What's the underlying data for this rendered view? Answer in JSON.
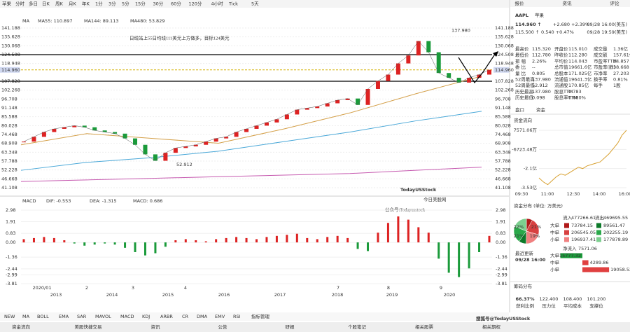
{
  "toolbar": {
    "items": [
      "苹果",
      "分时",
      "多日",
      "日K",
      "周K",
      "月K",
      "年K",
      "1分",
      "3分",
      "5分",
      "15分",
      "30分",
      "60分",
      "120分",
      "4小时",
      "Tick",
      "5天"
    ]
  },
  "price_chart": {
    "ma_legend": [
      "MA",
      "MA55: 110.897",
      "MA144: 89.113",
      "MA480: 53.829"
    ],
    "annotation": "日线站上55日均线111美元上方做多，目标124美元",
    "ylim": [
      41.108,
      141.188
    ],
    "yticks": [
      141.188,
      135.628,
      130.068,
      124.508,
      118.948,
      107.828,
      102.268,
      96.708,
      91.148,
      85.588,
      80.028,
      74.468,
      68.908,
      63.348,
      57.788,
      52.228,
      46.668,
      41.108
    ],
    "current_price": {
      "value": 114.96,
      "label": "114.960"
    },
    "levels": [
      124.508,
      107.828
    ],
    "high": {
      "value": 137.98,
      "label": "137.980"
    },
    "low": {
      "value": 52.912,
      "label": "52.912"
    },
    "close": [
      70,
      73,
      76,
      78,
      79,
      80,
      79,
      77,
      76,
      75,
      72,
      68,
      62,
      58,
      63,
      66,
      67,
      68,
      70,
      72,
      73,
      76,
      78,
      80,
      82,
      84,
      87,
      90,
      91,
      92,
      94,
      96,
      97,
      93,
      103,
      108,
      112,
      119,
      124,
      133,
      126,
      113,
      110,
      107,
      110,
      112,
      115
    ],
    "ma55": [
      68,
      75,
      72,
      69,
      78,
      88,
      100,
      111
    ],
    "ma144": [
      52,
      57,
      60,
      64,
      70,
      76,
      83,
      89
    ],
    "ma480": [
      45,
      46,
      47,
      48,
      49,
      50,
      52,
      54
    ]
  },
  "macd_chart": {
    "legend": [
      "MACD",
      "DIF: -0.553",
      "DEA: -1.315",
      "MACD: 0.686"
    ],
    "ylim": [
      -3.81,
      2.98
    ],
    "yticks": [
      {
        "value": 2.98,
        "label": "2.98"
      },
      {
        "value": 1.91,
        "label": "1.91"
      },
      {
        "value": 0.83,
        "label": "0.83"
      },
      {
        "value": 0,
        "label": "0.00"
      },
      {
        "value": -1.36,
        "label": "-1.36"
      },
      {
        "value": -2.44,
        "label": "-2.44"
      },
      {
        "value": -2.99,
        "label": "-2.99"
      },
      {
        "value": -3.81,
        "label": "-3.81"
      }
    ],
    "histogram": [
      0.3,
      0.4,
      0.5,
      0.4,
      0.2,
      -0.1,
      -0.3,
      -0.2,
      -0.1,
      -0.2,
      -0.5,
      -0.9,
      -1.2,
      -1.0,
      -0.4,
      0.2,
      0.3,
      0.2,
      0.1,
      0.3,
      0.4,
      0.5,
      0.4,
      0.3,
      0.5,
      0.6,
      0.7,
      0.8,
      0.4,
      0.3,
      0.5,
      0.6,
      0.4,
      -0.6,
      -0.8,
      0.9,
      1.8,
      2.4,
      2.1,
      1.4,
      0.9,
      -1.5,
      -2.8,
      -3.2,
      -2.4,
      -0.9,
      0.6
    ]
  },
  "x_axis": {
    "months": [
      "2020/01",
      "2",
      "3",
      "4",
      "7",
      "8",
      "9"
    ],
    "years": [
      "2013",
      "2014",
      "2015",
      "2016",
      "2017",
      "2018",
      "2019",
      "2020"
    ]
  },
  "watermarks": {
    "logo": "TodayUSStock",
    "logo_cn": "今日美股网",
    "wechat": "公众号:Todayusstock",
    "sohu": "搜狐号@TodayUSStock"
  },
  "indicators": [
    "NEW",
    "MA",
    "BOLL",
    "EMA",
    "SAR",
    "MAVOL",
    "MACD",
    "KDJ",
    "ARBR",
    "CR",
    "DMA",
    "EMV",
    "RSI",
    "指标管理"
  ],
  "bottom_tabs": [
    "资金流向",
    "美股快捷交易",
    "资讯",
    "公告",
    "研报",
    "个股笔记",
    "相关股票",
    "相关期权"
  ],
  "quote": {
    "tabs": [
      "报价",
      "资讯",
      "评论"
    ],
    "symbol": "AAPL",
    "name": "苹果",
    "price": "114.960 ↑",
    "change": "+2.680 +2.39%",
    "time": "09/28 16:00(美东)",
    "after_price": "115.500 ↑",
    "after_change": "0.540 +0.47%",
    "after_time": "09/28 19:59(美东)",
    "rows": [
      [
        "最高价",
        "115.320",
        "开盘价",
        "115.010",
        "成交量",
        "1.36亿"
      ],
      [
        "最低价",
        "112.780",
        "昨收价",
        "112.280",
        "成交额",
        "157.61亿"
      ],
      [
        "振 幅",
        "2.26%",
        "平均价",
        "114.043",
        "市盈率TTM",
        "34.857"
      ],
      [
        "委 比",
        "--",
        "总市值",
        "19661.6亿",
        "市盈率(静)",
        "38.668"
      ],
      [
        "量 比",
        "0.805",
        "总股本",
        "171.025亿",
        "市净率",
        "27.203"
      ],
      [
        "52周最高",
        "137.980",
        "流通值",
        "19641.3亿",
        "换手率",
        "0.81%"
      ],
      [
        "52周最低",
        "52.912",
        "流通股",
        "170.85亿",
        "每手",
        "1股"
      ],
      [
        "历史最高",
        "137.980",
        "股息TTM",
        "0.783"
      ],
      [
        "历史最低",
        "0.098",
        "股息率TTM",
        "0.680%"
      ]
    ],
    "panel_tabs": [
      "盘口",
      "资金"
    ]
  },
  "fund_flow": {
    "title": "资金流向",
    "ylim": [
      -35300,
      7571.06
    ],
    "yticks": [
      {
        "value": 7571.06,
        "label": "7571.06万"
      },
      {
        "value": -6723.48,
        "label": "-6723.48万"
      },
      {
        "value": -21000,
        "label": "-2.1亿"
      },
      {
        "value": -35300,
        "label": "-3.53亿"
      }
    ],
    "times": [
      "09:30",
      "11:00",
      "12:30",
      "14:00",
      "16:00"
    ],
    "values": [
      -28000,
      -31000,
      -33000,
      -30000,
      -27000,
      -25000,
      -26000,
      -24000,
      -22000,
      -20000,
      -21000,
      -19000,
      -18000,
      -17000,
      -16000,
      -13000,
      -10000,
      -6000,
      -2000,
      4000,
      7571.06
    ]
  },
  "fund_distribution": {
    "title": "资金分布 (单位: 万美元)",
    "inflow_label": "流入",
    "inflow": 477266.61,
    "outflow_label": "流出",
    "outflow": 469695.55,
    "rows": [
      {
        "name": "大单",
        "in": 73784.15,
        "out": 89561.47
      },
      {
        "name": "中单",
        "in": 206545.05,
        "out": 202255.19
      },
      {
        "name": "小单",
        "in": 196937.41,
        "out": 177878.89
      }
    ],
    "pie_labels": [
      "22%",
      "21%",
      "21%",
      "19%"
    ],
    "updated_label": "最近更新",
    "updated": "09/28 16:00",
    "net_label": "净流入",
    "net": 7571.06,
    "net_rows": [
      {
        "name": "大单",
        "value": -15777.32
      },
      {
        "name": "中单",
        "value": 4289.86
      },
      {
        "name": "小单",
        "value": 19058.52
      }
    ]
  },
  "chips": {
    "title": "筹码分布",
    "items": [
      {
        "value": "66.37%",
        "label": "获利比例"
      },
      {
        "value": "122.400",
        "label": "压力位"
      },
      {
        "value": "108.400",
        "label": "平均成本"
      },
      {
        "value": "101.200",
        "label": "支撑位"
      }
    ]
  }
}
